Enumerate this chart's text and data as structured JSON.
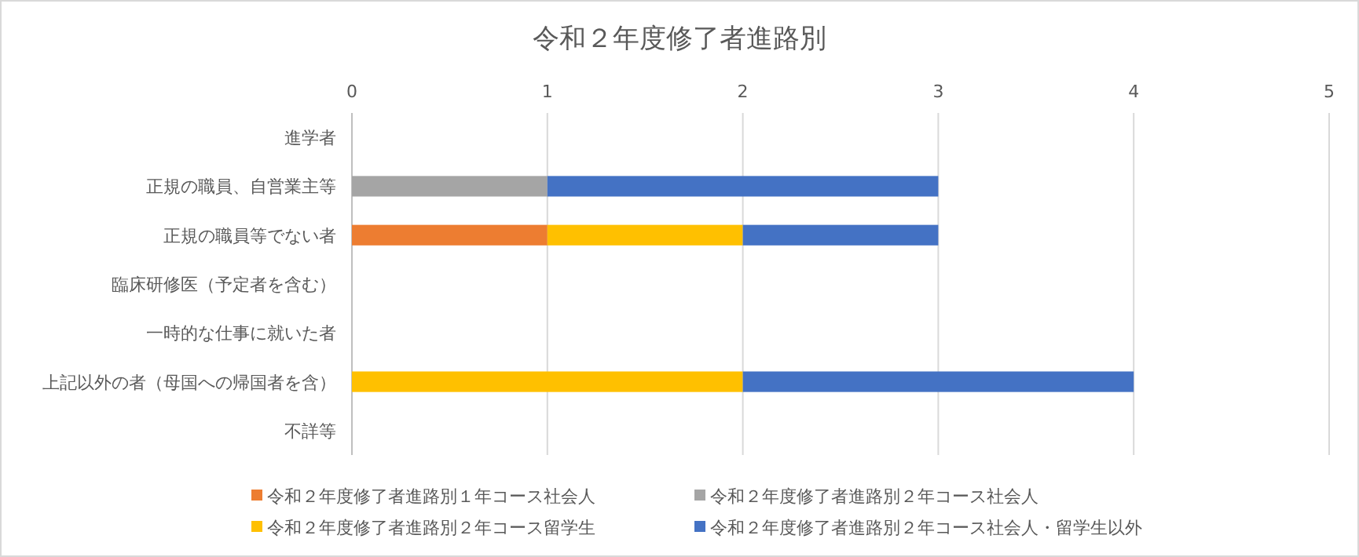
{
  "chart_data": {
    "type": "bar",
    "orientation": "horizontal",
    "stacked": true,
    "title": "令和２年度修了者進路別",
    "categories": [
      "進学者",
      "正規の職員、自営業主等",
      "正規の職員等でない者",
      "臨床研修医（予定者を含む）",
      "一時的な仕事に就いた者",
      "上記以外の者（母国への帰国者を含）",
      "不詳等"
    ],
    "series": [
      {
        "name": "令和２年度修了者進路別１年コース社会人",
        "color": "#ed7d31",
        "values": [
          null,
          null,
          1,
          null,
          null,
          null,
          null
        ]
      },
      {
        "name": "令和２年度修了者進路別２年コース社会人",
        "color": "#a5a5a5",
        "values": [
          null,
          1,
          null,
          null,
          null,
          null,
          null
        ]
      },
      {
        "name": "令和２年度修了者進路別２年コース留学生",
        "color": "#ffc000",
        "values": [
          null,
          null,
          1,
          null,
          null,
          2,
          null
        ]
      },
      {
        "name": "令和２年度修了者進路別２年コース社会人・留学生以外",
        "color": "#4472c4",
        "values": [
          null,
          2,
          1,
          null,
          null,
          2,
          null
        ]
      }
    ],
    "xlim": [
      0,
      5
    ],
    "xticks": [
      0,
      1,
      2,
      3,
      4,
      5
    ],
    "grid": "x",
    "legend": "bottom"
  }
}
